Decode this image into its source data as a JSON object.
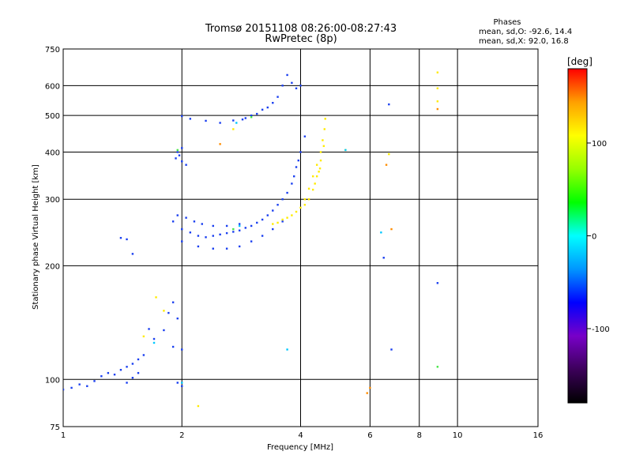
{
  "chart_data": {
    "type": "scatter",
    "title": "Tromsø 20151108 08:26:00-08:27:43",
    "subtitle": "RwPretec (8p)",
    "xlabel": "Frequency [MHz]",
    "ylabel": "Stationary phase Virtual Height [km]",
    "x_scale": "log",
    "y_scale": "log",
    "xlim": [
      1,
      16
    ],
    "ylim": [
      75,
      750
    ],
    "x_ticks": [
      1,
      2,
      4,
      6,
      8,
      10,
      16
    ],
    "y_ticks": [
      75,
      100,
      200,
      300,
      400,
      500,
      600,
      750
    ],
    "grid": true,
    "phase_info": {
      "heading": "Phases",
      "line1": "mean, sd,O: -92.6, 14.4",
      "line2": "mean, sd,X:  92.0, 16.8"
    },
    "colorbar": {
      "label": "[deg]",
      "ticks": [
        100,
        0,
        -100
      ],
      "range": [
        -180,
        180
      ],
      "colors": [
        "#000000",
        "#3c005a",
        "#7800c8",
        "#0000ff",
        "#0096ff",
        "#00ffff",
        "#00ff00",
        "#96ff00",
        "#ffff00",
        "#ffa000",
        "#ff0000"
      ]
    },
    "series": [
      {
        "color": "#1a3ff0",
        "points": [
          [
            1.0,
            94
          ],
          [
            1.05,
            95
          ],
          [
            1.1,
            97
          ],
          [
            1.15,
            96
          ],
          [
            1.2,
            99
          ],
          [
            1.25,
            102
          ],
          [
            1.3,
            104
          ],
          [
            1.35,
            103
          ],
          [
            1.4,
            106
          ],
          [
            1.45,
            108
          ],
          [
            1.5,
            110
          ],
          [
            1.55,
            113
          ],
          [
            1.6,
            116
          ],
          [
            1.45,
            98
          ],
          [
            1.5,
            101
          ],
          [
            1.55,
            104
          ],
          [
            1.85,
            150
          ],
          [
            1.9,
            160
          ],
          [
            1.95,
            145
          ],
          [
            1.8,
            135
          ],
          [
            1.9,
            122
          ],
          [
            2.0,
            120
          ],
          [
            1.95,
            98
          ],
          [
            2.0,
            96
          ],
          [
            1.7,
            128
          ],
          [
            1.65,
            136
          ],
          [
            1.4,
            237
          ],
          [
            1.45,
            235
          ],
          [
            1.5,
            215
          ],
          [
            1.93,
            385
          ],
          [
            1.97,
            392
          ],
          [
            2.0,
            378
          ],
          [
            2.05,
            370
          ],
          [
            1.95,
            400
          ],
          [
            2.0,
            410
          ],
          [
            2.0,
            498
          ],
          [
            2.1,
            490
          ],
          [
            2.3,
            484
          ],
          [
            2.5,
            478
          ],
          [
            2.7,
            485
          ],
          [
            2.9,
            492
          ],
          [
            3.1,
            505
          ],
          [
            3.3,
            525
          ],
          [
            3.5,
            560
          ],
          [
            3.6,
            600
          ],
          [
            3.7,
            640
          ],
          [
            3.8,
            610
          ],
          [
            3.9,
            590
          ],
          [
            4.0,
            600
          ],
          [
            3.4,
            540
          ],
          [
            3.2,
            518
          ],
          [
            3.0,
            500
          ],
          [
            2.85,
            488
          ],
          [
            1.9,
            262
          ],
          [
            2.0,
            250
          ],
          [
            2.1,
            245
          ],
          [
            2.2,
            240
          ],
          [
            2.3,
            238
          ],
          [
            2.4,
            240
          ],
          [
            2.6,
            244
          ],
          [
            2.8,
            248
          ],
          [
            3.0,
            255
          ],
          [
            3.2,
            265
          ],
          [
            3.4,
            280
          ],
          [
            3.6,
            300
          ],
          [
            3.8,
            330
          ],
          [
            3.9,
            365
          ],
          [
            4.0,
            400
          ],
          [
            4.1,
            440
          ],
          [
            3.95,
            380
          ],
          [
            3.85,
            345
          ],
          [
            3.7,
            312
          ],
          [
            3.5,
            290
          ],
          [
            3.3,
            272
          ],
          [
            3.1,
            260
          ],
          [
            2.9,
            252
          ],
          [
            2.7,
            246
          ],
          [
            2.5,
            242
          ],
          [
            2.0,
            232
          ],
          [
            2.2,
            225
          ],
          [
            2.4,
            222
          ],
          [
            2.6,
            222
          ],
          [
            2.8,
            225
          ],
          [
            3.0,
            232
          ],
          [
            3.2,
            240
          ],
          [
            3.4,
            250
          ],
          [
            3.6,
            262
          ],
          [
            1.95,
            272
          ],
          [
            2.05,
            268
          ],
          [
            2.15,
            262
          ],
          [
            2.25,
            258
          ],
          [
            2.4,
            255
          ],
          [
            2.6,
            255
          ],
          [
            2.8,
            258
          ],
          [
            6.7,
            535
          ],
          [
            6.5,
            210
          ],
          [
            6.8,
            120
          ],
          [
            8.9,
            180
          ]
        ]
      },
      {
        "color": "#ffeb00",
        "points": [
          [
            3.6,
            265
          ],
          [
            3.8,
            272
          ],
          [
            4.0,
            285
          ],
          [
            4.1,
            300
          ],
          [
            4.2,
            320
          ],
          [
            4.3,
            345
          ],
          [
            4.4,
            370
          ],
          [
            4.5,
            400
          ],
          [
            4.55,
            430
          ],
          [
            4.6,
            460
          ],
          [
            4.62,
            490
          ],
          [
            4.5,
            380
          ],
          [
            4.4,
            345
          ],
          [
            4.3,
            318
          ],
          [
            4.2,
            300
          ],
          [
            4.1,
            290
          ],
          [
            3.9,
            278
          ],
          [
            3.7,
            268
          ],
          [
            3.5,
            260
          ],
          [
            3.4,
            258
          ],
          [
            4.58,
            415
          ],
          [
            4.48,
            362
          ],
          [
            4.35,
            330
          ],
          [
            4.45,
            355
          ],
          [
            1.72,
            165
          ],
          [
            1.6,
            130
          ],
          [
            1.8,
            152
          ],
          [
            2.2,
            85
          ],
          [
            5.2,
            405
          ],
          [
            6.7,
            395
          ],
          [
            8.9,
            650
          ],
          [
            8.9,
            590
          ],
          [
            8.9,
            545
          ],
          [
            2.7,
            460
          ]
        ]
      },
      {
        "color": "#ff8c00",
        "points": [
          [
            6.0,
            95
          ],
          [
            5.9,
            92
          ],
          [
            8.9,
            520
          ],
          [
            6.6,
            370
          ],
          [
            6.8,
            250
          ],
          [
            2.5,
            420
          ]
        ]
      },
      {
        "color": "#00c8ff",
        "points": [
          [
            2.8,
            255
          ],
          [
            2.75,
            478
          ],
          [
            1.7,
            125
          ],
          [
            5.2,
            405
          ],
          [
            2.0,
            98
          ],
          [
            6.4,
            245
          ],
          [
            3.7,
            120
          ]
        ]
      },
      {
        "color": "#46e646",
        "points": [
          [
            3.0,
            495
          ],
          [
            2.7,
            250
          ],
          [
            8.9,
            108
          ],
          [
            1.95,
            405
          ]
        ]
      }
    ]
  }
}
